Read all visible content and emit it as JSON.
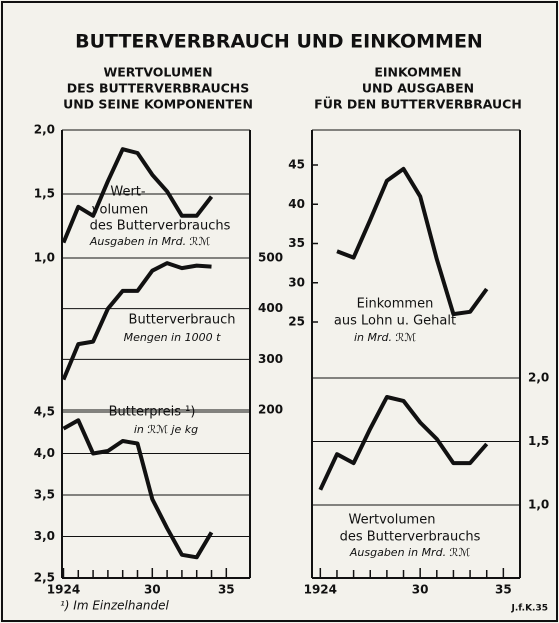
{
  "title": "BUTTERVERBRAUCH UND EINKOMMEN",
  "footnote": "¹) Im Einzelhandel",
  "credit": "J.f.K.35",
  "chart_data": [
    {
      "type": "line",
      "subtitle": [
        "WERTVOLUMEN",
        "DES BUTTERVERBRAUCHS",
        "UND SEINE KOMPONENTEN"
      ],
      "x": [
        1924,
        1925,
        1926,
        1927,
        1928,
        1929,
        1930,
        1931,
        1932,
        1933,
        1934
      ],
      "xlim": [
        1923.9,
        1936.6
      ],
      "xticks": [
        1924,
        {
          "value": 1930,
          "label": "30"
        },
        {
          "value": 1935,
          "label": "35"
        }
      ],
      "xminor_ticks": [
        1925,
        1926,
        1927,
        1928,
        1929,
        1931,
        1932,
        1933,
        1934
      ],
      "series": [
        {
          "color": "#111111",
          "axis": "y",
          "grid": true,
          "values": [
            1.12,
            1.4,
            1.33,
            1.6,
            1.85,
            1.82,
            1.65,
            1.52,
            1.33,
            1.33,
            1.48
          ],
          "ylim": [
            1.0,
            2.0
          ],
          "yticks": [
            {
              "value": 1.0,
              "label": "1,0"
            },
            {
              "value": 1.5,
              "label": "1,5"
            },
            {
              "value": 2.0,
              "label": "2,0"
            }
          ],
          "label_lines": [
            "Wert-",
            "volumen",
            "des Butterverbrauchs",
            "Ausgaben in Mrd. ℛℳ"
          ]
        },
        {
          "color": "#111111",
          "axis": "y2",
          "grid": true,
          "values": [
            260,
            330,
            335,
            400,
            435,
            435,
            475,
            490,
            480,
            485,
            483
          ],
          "ylim": [
            200,
            500
          ],
          "yticks": [
            200,
            300,
            400,
            500
          ],
          "label_lines": [
            "Butterverbrauch",
            "Mengen in 1000 t"
          ]
        },
        {
          "color": "#111111",
          "axis": "y",
          "grid": true,
          "values": [
            4.3,
            4.4,
            4.0,
            4.03,
            4.15,
            4.12,
            3.45,
            3.1,
            2.78,
            2.75,
            3.05
          ],
          "ylim": [
            2.5,
            4.5
          ],
          "yticks": [
            {
              "value": 2.5,
              "label": "2,5"
            },
            {
              "value": 3.0,
              "label": "3,0"
            },
            {
              "value": 3.5,
              "label": "3,5"
            },
            {
              "value": 4.0,
              "label": "4,0"
            },
            {
              "value": 4.5,
              "label": "4,5"
            }
          ],
          "label_lines": [
            "Butterpreis ¹)",
            "in ℛℳ je kg"
          ]
        }
      ]
    },
    {
      "type": "line",
      "subtitle": [
        "EINKOMMEN",
        "UND AUSGABEN",
        "FÜR DEN BUTTERVERBRAUCH"
      ],
      "xlim": [
        1923.5,
        1936.0
      ],
      "xticks": [
        1924,
        {
          "value": 1930,
          "label": "30"
        },
        {
          "value": 1935,
          "label": "35"
        }
      ],
      "xminor_ticks": [
        1925,
        1926,
        1927,
        1928,
        1929,
        1931,
        1932,
        1933,
        1934
      ],
      "series": [
        {
          "color": "#111111",
          "axis": "y",
          "grid": false,
          "x": [
            1925,
            1926,
            1927,
            1928,
            1929,
            1930,
            1931,
            1932,
            1933,
            1934
          ],
          "values": [
            34,
            33.2,
            38,
            43,
            44.5,
            41,
            33,
            26,
            26.3,
            29.2
          ],
          "ylim": [
            25,
            45
          ],
          "yticks": [
            25,
            30,
            35,
            40,
            45
          ],
          "label_lines": [
            "Einkommen",
            "aus Lohn u. Gehalt",
            "in Mrd. ℛℳ"
          ]
        },
        {
          "color": "#111111",
          "axis": "y2",
          "grid": true,
          "x": [
            1924,
            1925,
            1926,
            1927,
            1928,
            1929,
            1930,
            1931,
            1932,
            1933,
            1934
          ],
          "values": [
            1.12,
            1.4,
            1.33,
            1.6,
            1.85,
            1.82,
            1.65,
            1.52,
            1.33,
            1.33,
            1.48
          ],
          "ylim": [
            1.0,
            2.0
          ],
          "yticks": [
            {
              "value": 1.0,
              "label": "1,0"
            },
            {
              "value": 1.5,
              "label": "1,5"
            },
            {
              "value": 2.0,
              "label": "2,0"
            }
          ],
          "label_lines": [
            "Wertvolumen",
            "des Butterverbrauchs",
            "Ausgaben in Mrd. ℛℳ"
          ]
        }
      ]
    }
  ]
}
